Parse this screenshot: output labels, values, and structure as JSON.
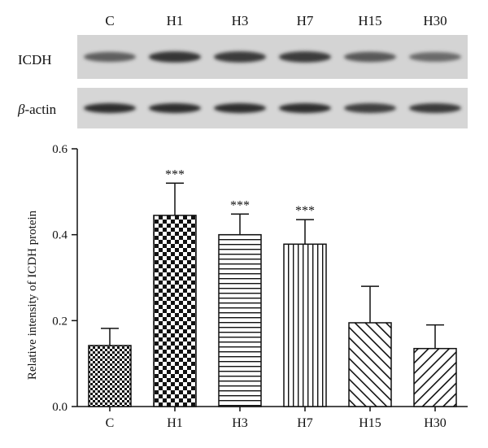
{
  "blot": {
    "lane_labels": [
      "C",
      "H1",
      "H3",
      "H7",
      "H15",
      "H30"
    ],
    "rows": [
      {
        "label": "ICDH",
        "label_italic_prefix": "",
        "band_intensity": [
          0.55,
          0.9,
          0.85,
          0.85,
          0.6,
          0.45
        ]
      },
      {
        "label": "-actin",
        "label_italic_prefix": "β",
        "band_intensity": [
          0.95,
          0.95,
          0.95,
          0.95,
          0.8,
          0.85
        ]
      }
    ]
  },
  "chart_data": {
    "type": "bar",
    "title": "",
    "xlabel": "",
    "ylabel": "Relative intensity of ICDH protein",
    "ylim": [
      0,
      0.6
    ],
    "yticks": [
      "0.0",
      "0.2",
      "0.4",
      "0.6"
    ],
    "grid": false,
    "categories": [
      "C",
      "H1",
      "H3",
      "H7",
      "H15",
      "H30"
    ],
    "values": [
      0.142,
      0.445,
      0.4,
      0.378,
      0.195,
      0.135
    ],
    "errors": [
      0.04,
      0.075,
      0.048,
      0.057,
      0.085,
      0.055
    ],
    "significance": [
      "",
      "***",
      "***",
      "***",
      "",
      ""
    ],
    "patterns": [
      "small-checker",
      "large-checker",
      "horizontal-lines",
      "vertical-lines",
      "diagonal-up",
      "diagonal-down"
    ]
  }
}
